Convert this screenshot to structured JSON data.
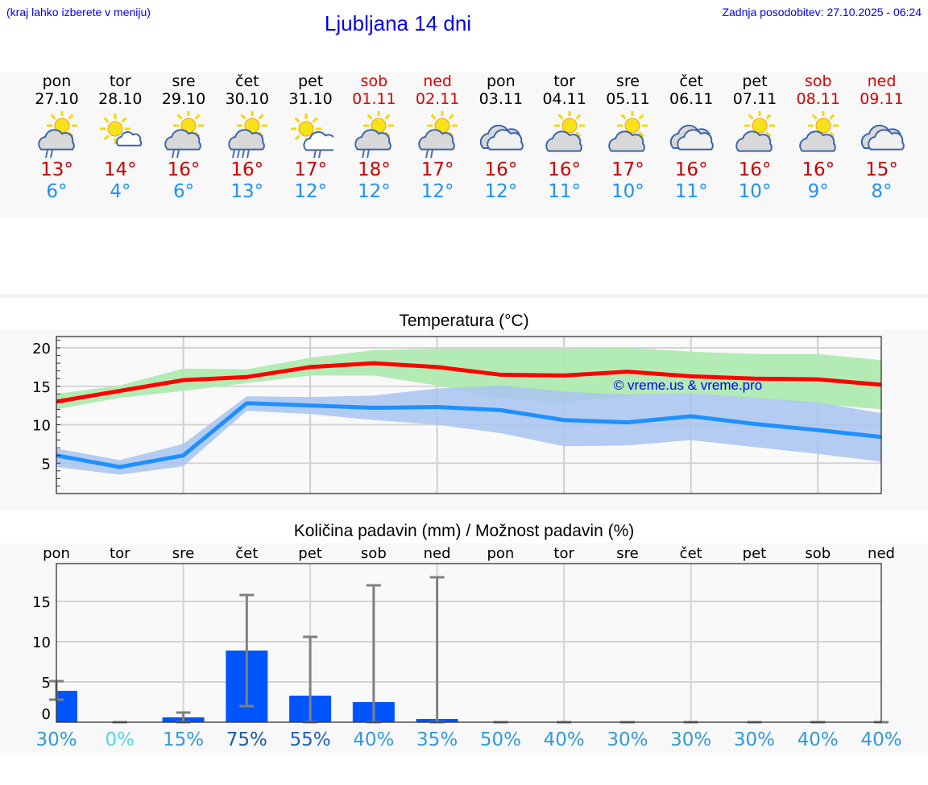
{
  "header": {
    "hint": "(kraj lahko izberete v meniju)",
    "title": "Ljubljana 14 dni",
    "updated": "Zadnja posodobitev: 27.10.2025 - 06:24"
  },
  "days": [
    {
      "name": "pon",
      "date": "27.10",
      "weekend": false,
      "icon": "partly-cloudy-rain",
      "max": "13°",
      "min": "6°"
    },
    {
      "name": "tor",
      "date": "28.10",
      "weekend": false,
      "icon": "sunny-small-cloud",
      "max": "14°",
      "min": "4°"
    },
    {
      "name": "sre",
      "date": "29.10",
      "weekend": false,
      "icon": "partly-cloudy-rain",
      "max": "16°",
      "min": "6°"
    },
    {
      "name": "čet",
      "date": "30.10",
      "weekend": false,
      "icon": "partly-cloudy-heavy-rain",
      "max": "16°",
      "min": "13°"
    },
    {
      "name": "pet",
      "date": "31.10",
      "weekend": false,
      "icon": "sun-white-cloud-rain",
      "max": "17°",
      "min": "12°"
    },
    {
      "name": "sob",
      "date": "01.11",
      "weekend": true,
      "icon": "partly-cloudy-rain",
      "max": "18°",
      "min": "12°"
    },
    {
      "name": "ned",
      "date": "02.11",
      "weekend": true,
      "icon": "partly-cloudy-rain",
      "max": "17°",
      "min": "12°"
    },
    {
      "name": "pon",
      "date": "03.11",
      "weekend": false,
      "icon": "cloudy",
      "max": "16°",
      "min": "12°"
    },
    {
      "name": "tor",
      "date": "04.11",
      "weekend": false,
      "icon": "partly-cloudy",
      "max": "16°",
      "min": "11°"
    },
    {
      "name": "sre",
      "date": "05.11",
      "weekend": false,
      "icon": "partly-cloudy",
      "max": "17°",
      "min": "10°"
    },
    {
      "name": "čet",
      "date": "06.11",
      "weekend": false,
      "icon": "cloudy",
      "max": "16°",
      "min": "11°"
    },
    {
      "name": "pet",
      "date": "07.11",
      "weekend": false,
      "icon": "partly-cloudy",
      "max": "16°",
      "min": "10°"
    },
    {
      "name": "sob",
      "date": "08.11",
      "weekend": true,
      "icon": "partly-cloudy",
      "max": "16°",
      "min": "9°"
    },
    {
      "name": "ned",
      "date": "09.11",
      "weekend": true,
      "icon": "cloudy",
      "max": "15°",
      "min": "8°"
    }
  ],
  "colors": {
    "max": "#ff0000",
    "min": "#1e90ff",
    "max_band": "#aeeab0",
    "min_band": "#a8c4f0",
    "bar": "#0055ff",
    "error": "#808080",
    "weekend": "#dd0000"
  },
  "chart_data": [
    {
      "type": "line",
      "title": "Temperatura (°C)",
      "watermark": "© vreme.us & vreme.pro",
      "x": [
        "27.10",
        "28.10",
        "29.10",
        "30.10",
        "31.10",
        "01.11",
        "02.11",
        "03.11",
        "04.11",
        "05.11",
        "06.11",
        "07.11",
        "08.11",
        "09.11"
      ],
      "ylim": [
        1.1,
        21.5
      ],
      "yticks": [
        5,
        10,
        15,
        20
      ],
      "grid": true,
      "series": [
        {
          "values": [
            13,
            14.4,
            15.8,
            16.2,
            17.5,
            18,
            17.5,
            16.5,
            16.4,
            16.9,
            16.3,
            16,
            15.9,
            15.2
          ],
          "band_high": [
            14,
            15.1,
            17.3,
            17.2,
            18.7,
            19.7,
            19.9,
            19.9,
            19.9,
            20,
            19.5,
            19.2,
            19.2,
            18.4
          ],
          "band_low": [
            12,
            13.5,
            14.4,
            15.4,
            16.4,
            16.4,
            15.1,
            13.4,
            12.9,
            13.7,
            14.1,
            13.4,
            12.7,
            12
          ]
        },
        {
          "values": [
            6,
            4.5,
            6,
            12.8,
            12.5,
            12.2,
            12.3,
            11.9,
            10.6,
            10.3,
            11.1,
            10.1,
            9.3,
            8.4
          ],
          "band_high": [
            6.9,
            5.4,
            7.5,
            13.7,
            13.6,
            13.8,
            14.7,
            15.1,
            14.3,
            13.9,
            14.1,
            13.5,
            12.9,
            11.5
          ],
          "band_low": [
            4.5,
            3.5,
            4.6,
            11.8,
            11.4,
            10.6,
            10,
            8.9,
            7.2,
            7.3,
            8,
            7.1,
            6.2,
            5.2
          ]
        }
      ]
    },
    {
      "type": "bar",
      "title": "Količina padavin (mm) / Možnost padavin (%)",
      "categories": [
        "pon",
        "tor",
        "sre",
        "čet",
        "pet",
        "sob",
        "ned",
        "pon",
        "tor",
        "sre",
        "čet",
        "pet",
        "sob",
        "ned"
      ],
      "values": [
        3.9,
        0,
        0.6,
        8.9,
        3.3,
        2.5,
        0.4,
        0,
        0,
        0,
        0,
        0,
        0,
        0
      ],
      "error_low": [
        2.8,
        0,
        0,
        2,
        0,
        0,
        0,
        0,
        0,
        0,
        0,
        0,
        0,
        0
      ],
      "error_high": [
        5.1,
        0,
        1.2,
        15.8,
        10.6,
        17,
        18,
        0,
        0,
        0,
        0,
        0,
        0,
        0
      ],
      "probability": [
        "30%",
        "0%",
        "15%",
        "75%",
        "55%",
        "40%",
        "35%",
        "50%",
        "40%",
        "30%",
        "30%",
        "30%",
        "40%",
        "40%"
      ],
      "probability_colors": [
        "#3399dd",
        "#55d4ea",
        "#3399dd",
        "#1a5aaf",
        "#2060c0",
        "#3399dd",
        "#3399dd",
        "#3399dd",
        "#3399dd",
        "#3399dd",
        "#3399dd",
        "#3399dd",
        "#3399dd",
        "#3399dd"
      ],
      "ylim": [
        0,
        20
      ],
      "yticks": [
        0,
        5,
        10,
        15
      ],
      "grid": true
    }
  ]
}
